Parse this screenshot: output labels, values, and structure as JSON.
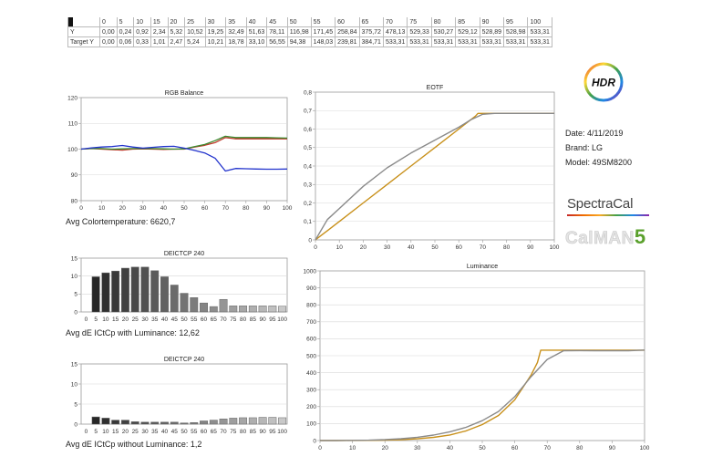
{
  "table": {
    "header": [
      "0",
      "5",
      "10",
      "15",
      "20",
      "25",
      "30",
      "35",
      "40",
      "45",
      "50",
      "55",
      "60",
      "65",
      "70",
      "75",
      "80",
      "85",
      "90",
      "95",
      "100"
    ],
    "rows": [
      {
        "label": "Y",
        "values": [
          "0,00",
          "0,24",
          "0,92",
          "2,34",
          "5,32",
          "10,52",
          "19,25",
          "32,49",
          "51,63",
          "78,11",
          "116,98",
          "171,45",
          "258,84",
          "375,72",
          "478,13",
          "529,33",
          "530,27",
          "529,12",
          "528,89",
          "528,98",
          "533,31"
        ]
      },
      {
        "label": "Target Y",
        "values": [
          "0,00",
          "0,06",
          "0,33",
          "1,01",
          "2,47",
          "5,24",
          "10,21",
          "18,78",
          "33,10",
          "56,55",
          "94,38",
          "148,03",
          "239,81",
          "384,71",
          "533,31",
          "533,31",
          "533,31",
          "533,31",
          "533,31",
          "533,31",
          "533,31"
        ]
      }
    ]
  },
  "info": {
    "date": "Date: 4/11/2019",
    "brand": "Brand: LG",
    "model": "Model: 49SM8200"
  },
  "logos": {
    "hdr": "HDR",
    "spectracal": "SpectraCal",
    "calman": "CalMAN",
    "calman_version": "5"
  },
  "captions": {
    "rgb": "Avg Colortemperature: 6620,7",
    "dE_lum": "Avg dE ICtCp with Luminance: 12,62",
    "dE_nolum": "Avg dE ICtCp without Luminance: 1,2"
  },
  "colors": {
    "red": "#c0392b",
    "green": "#3a8a2e",
    "blue": "#2233cc",
    "measured": "#8a8a8a",
    "target": "#c8901a",
    "bar_dark": "#333333",
    "bar_light": "#c8c8c8"
  },
  "chart_data": [
    {
      "type": "line",
      "title": "RGB Balance",
      "x": [
        0,
        5,
        10,
        15,
        20,
        25,
        30,
        35,
        40,
        45,
        50,
        55,
        60,
        65,
        70,
        75,
        80,
        85,
        90,
        95,
        100
      ],
      "xticks": [
        0,
        10,
        20,
        30,
        40,
        50,
        60,
        70,
        80,
        90,
        100
      ],
      "yticks": [
        80,
        90,
        100,
        110,
        120
      ],
      "xlim": [
        0,
        100
      ],
      "ylim": [
        80,
        120
      ],
      "series": [
        {
          "color_key": "red",
          "values": [
            100,
            100.2,
            100,
            99.8,
            99.6,
            100,
            100.1,
            100,
            99.9,
            100,
            100,
            100.8,
            101.5,
            102.5,
            104.5,
            104,
            104,
            104,
            104,
            104,
            104
          ]
        },
        {
          "color_key": "green",
          "values": [
            100,
            100.3,
            100.2,
            100,
            100.1,
            100.2,
            100.3,
            100.2,
            100.1,
            100,
            100.1,
            101,
            101.8,
            103.3,
            105,
            104.5,
            104.5,
            104.5,
            104.5,
            104.4,
            104.3
          ]
        },
        {
          "color_key": "blue",
          "values": [
            100,
            100.5,
            100.8,
            101,
            101.4,
            100.8,
            100.4,
            100.7,
            101,
            101.1,
            100.4,
            99.5,
            98.5,
            96.5,
            91.5,
            92.5,
            92.4,
            92.3,
            92.2,
            92.2,
            92.3
          ]
        }
      ]
    },
    {
      "type": "line",
      "title": "EOTF",
      "xticks": [
        0,
        10,
        20,
        30,
        40,
        50,
        60,
        70,
        80,
        90,
        100
      ],
      "yticks": [
        0,
        0.1,
        0.2,
        0.3,
        0.4,
        0.5,
        0.6,
        0.7,
        0.8
      ],
      "ytick_labels": [
        "0",
        "0,1",
        "0,2",
        "0,3",
        "0,4",
        "0,5",
        "0,6",
        "0,7",
        "0,8"
      ],
      "xlim": [
        0,
        100
      ],
      "ylim": [
        0,
        0.8
      ],
      "series": [
        {
          "color_key": "target",
          "x": [
            0,
            2,
            5,
            10,
            20,
            30,
            40,
            50,
            60,
            67,
            68,
            70,
            80,
            90,
            100
          ],
          "values": [
            0,
            0.02,
            0.05,
            0.1,
            0.2,
            0.3,
            0.4,
            0.5,
            0.6,
            0.67,
            0.685,
            0.685,
            0.685,
            0.685,
            0.685
          ]
        },
        {
          "color_key": "measured",
          "x": [
            0,
            5,
            10,
            20,
            30,
            40,
            50,
            60,
            65,
            70,
            75,
            80,
            90,
            100
          ],
          "values": [
            0,
            0.11,
            0.17,
            0.29,
            0.39,
            0.47,
            0.54,
            0.61,
            0.65,
            0.68,
            0.685,
            0.685,
            0.685,
            0.685
          ]
        }
      ]
    },
    {
      "type": "bar",
      "title": "DEICTCP 240",
      "categories": [
        "0",
        "5",
        "10",
        "15",
        "20",
        "25",
        "30",
        "35",
        "40",
        "45",
        "50",
        "55",
        "60",
        "65",
        "70",
        "75",
        "80",
        "85",
        "90",
        "95",
        "100"
      ],
      "values": [
        0,
        9.8,
        10.9,
        11.4,
        12.2,
        12.5,
        12.5,
        11.5,
        9.8,
        7.5,
        5.2,
        4,
        2.5,
        1.5,
        3.5,
        1.7,
        1.7,
        1.7,
        1.7,
        1.7,
        1.6
      ],
      "yticks": [
        0,
        5,
        10,
        15
      ],
      "ylim": [
        0,
        15
      ]
    },
    {
      "type": "line",
      "title": "Luminance",
      "xticks": [
        0,
        10,
        20,
        30,
        40,
        50,
        60,
        70,
        80,
        90,
        100
      ],
      "yticks": [
        0,
        100,
        200,
        300,
        400,
        500,
        600,
        700,
        800,
        900,
        1000
      ],
      "xlim": [
        0,
        100
      ],
      "ylim": [
        0,
        1000
      ],
      "series": [
        {
          "color_key": "target",
          "x": [
            0,
            5,
            10,
            15,
            20,
            25,
            30,
            35,
            40,
            45,
            50,
            55,
            60,
            65,
            67,
            68,
            70,
            75,
            80,
            90,
            100
          ],
          "values": [
            0,
            0.1,
            0.3,
            1,
            2.5,
            5,
            10,
            19,
            33,
            57,
            94,
            148,
            240,
            385,
            460,
            533,
            533,
            533,
            533,
            533,
            533
          ]
        },
        {
          "color_key": "measured",
          "x": [
            0,
            5,
            10,
            15,
            20,
            25,
            30,
            35,
            40,
            45,
            50,
            55,
            60,
            65,
            70,
            75,
            80,
            85,
            90,
            95,
            100
          ],
          "values": [
            0,
            0.2,
            0.9,
            2.3,
            5.3,
            10.5,
            19.3,
            32.5,
            51.6,
            78.1,
            117,
            171.5,
            258.8,
            375.7,
            478.1,
            529.3,
            530.3,
            529.1,
            528.9,
            529,
            533.3
          ]
        }
      ]
    },
    {
      "type": "bar",
      "title": "DEICTCP 240",
      "categories": [
        "0",
        "5",
        "10",
        "15",
        "20",
        "25",
        "30",
        "35",
        "40",
        "45",
        "50",
        "55",
        "60",
        "65",
        "70",
        "75",
        "80",
        "85",
        "90",
        "95",
        "100"
      ],
      "values": [
        0,
        1.8,
        1.5,
        1,
        1,
        0.6,
        0.5,
        0.5,
        0.5,
        0.5,
        0.3,
        0.4,
        0.8,
        1,
        1.3,
        1.5,
        1.6,
        1.6,
        1.7,
        1.7,
        1.6
      ],
      "yticks": [
        0,
        5,
        10,
        15
      ],
      "ylim": [
        0,
        15
      ]
    }
  ]
}
